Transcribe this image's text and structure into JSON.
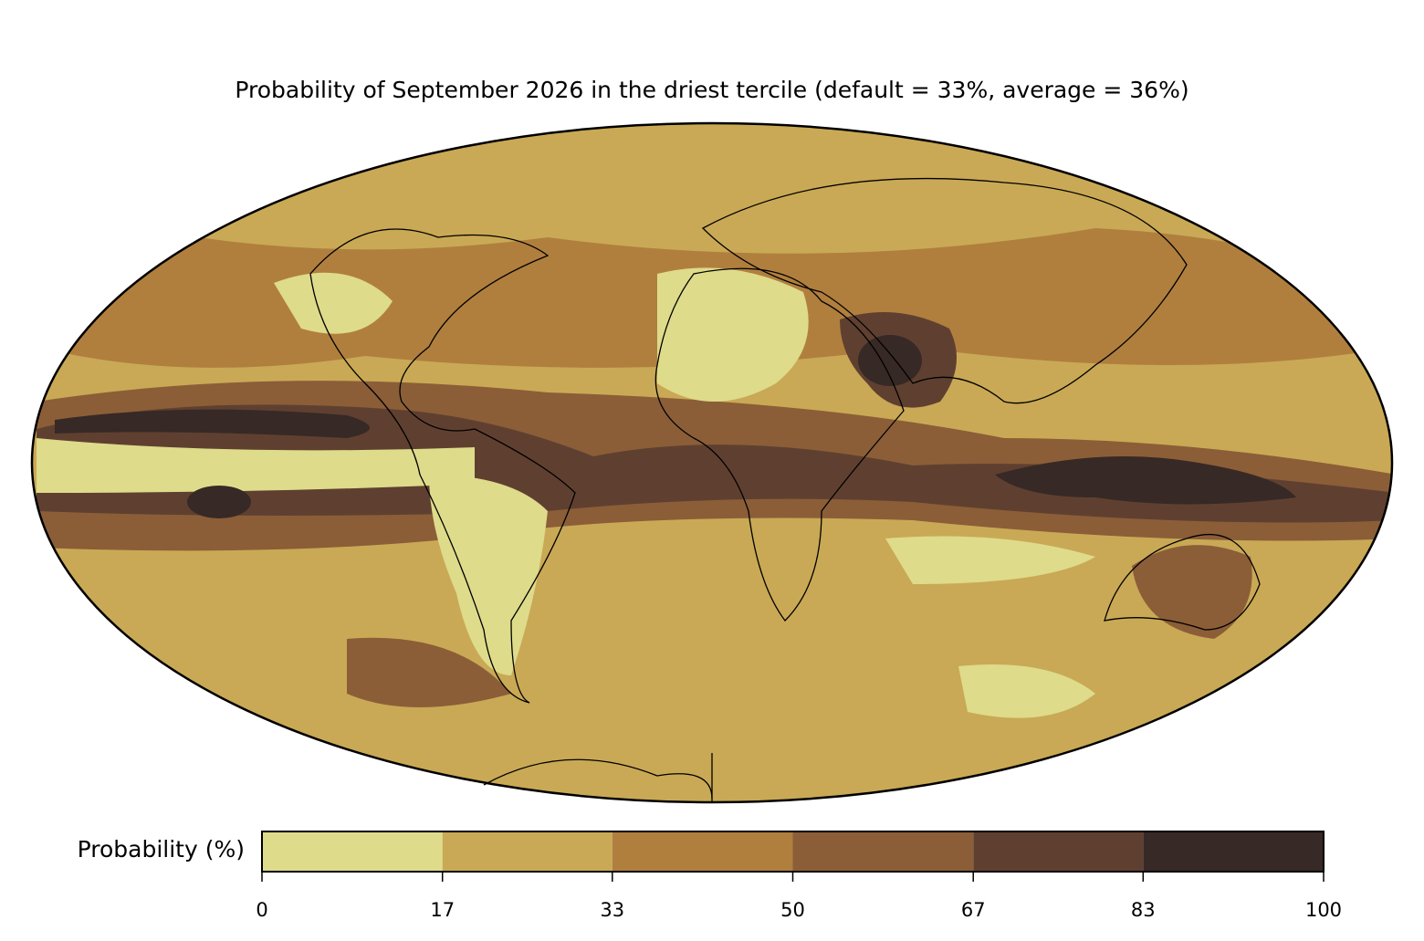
{
  "title": "Probability of September 2026 in the driest tercile (default = 33%, average = 36%)",
  "colorbar": {
    "label": "Probability (%)",
    "ticks": [
      0,
      17,
      33,
      50,
      67,
      83,
      100
    ],
    "colors": [
      "#dedb8b",
      "#c9a955",
      "#b07f3e",
      "#8b5e38",
      "#5f4030",
      "#372925"
    ]
  }
}
